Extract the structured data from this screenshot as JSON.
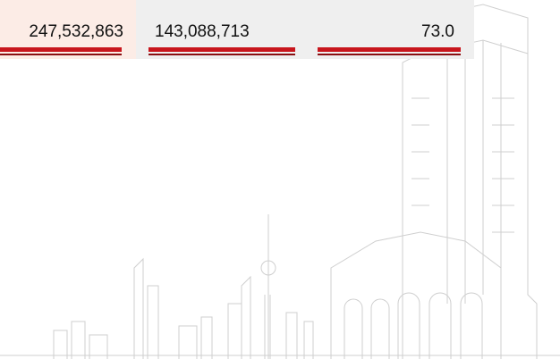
{
  "table": {
    "rows": [
      [
        "247,532,863",
        "143,088,713",
        "73.0"
      ]
    ]
  }
}
